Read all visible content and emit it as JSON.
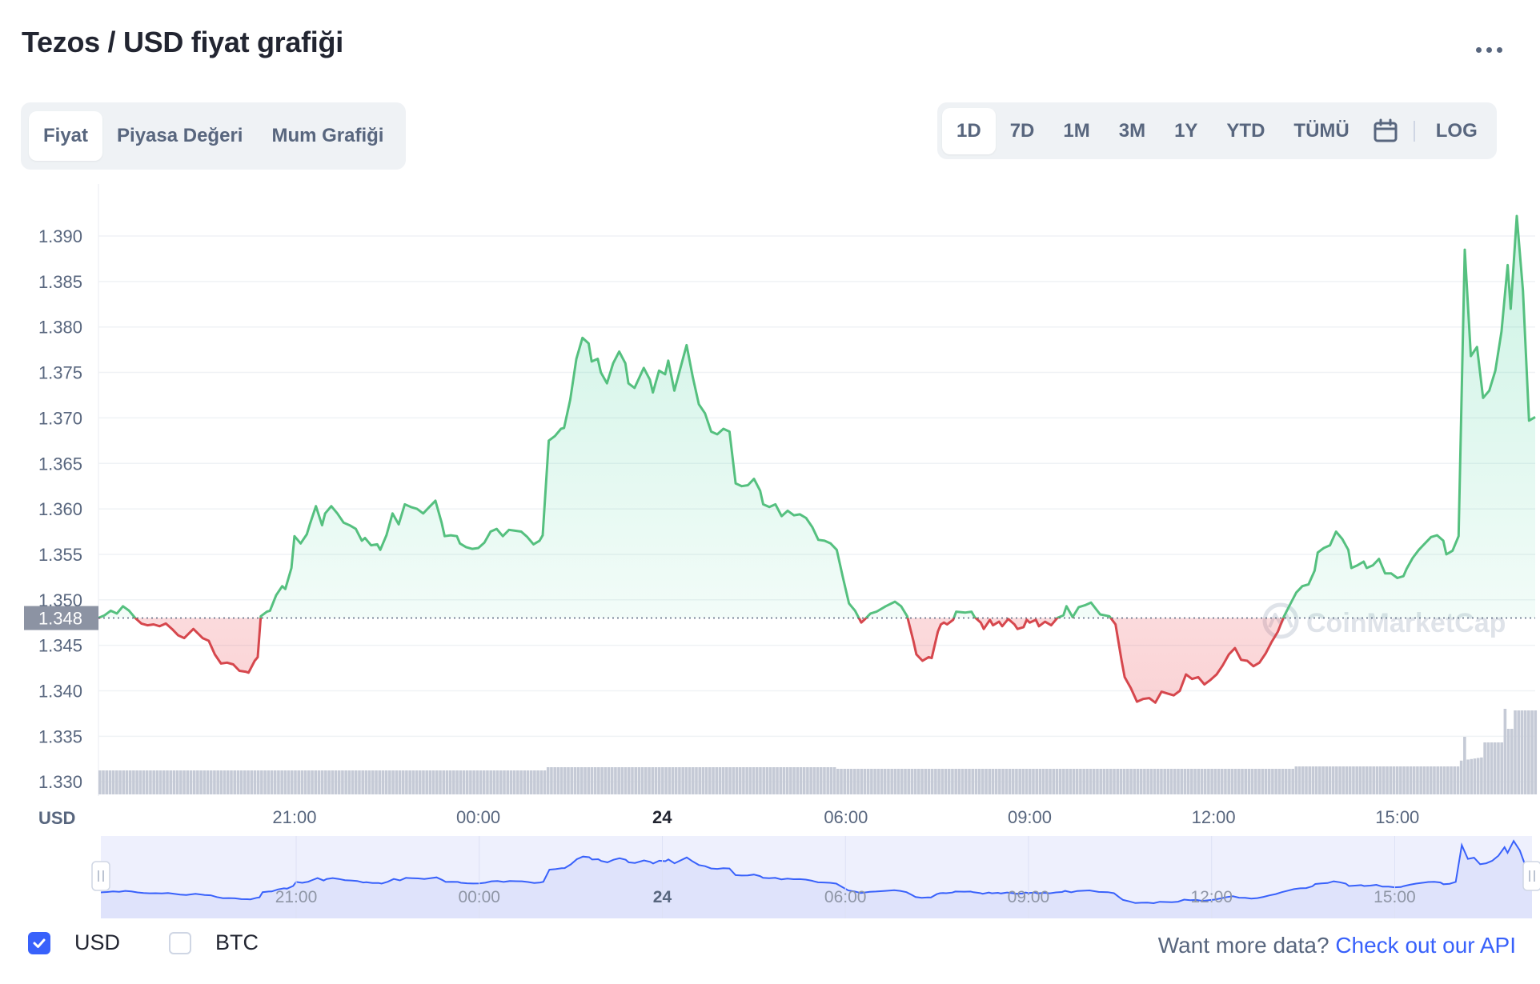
{
  "header": {
    "title": "Tezos / USD fiyat grafiği",
    "more_icon": "more-horizontal-icon"
  },
  "chart_tabs": [
    {
      "label": "Fiyat",
      "active": true
    },
    {
      "label": "Piyasa Değeri",
      "active": false
    },
    {
      "label": "Mum Grafiği",
      "active": false
    }
  ],
  "range_tabs": [
    {
      "label": "1D",
      "active": true
    },
    {
      "label": "7D",
      "active": false
    },
    {
      "label": "1M",
      "active": false
    },
    {
      "label": "3M",
      "active": false
    },
    {
      "label": "1Y",
      "active": false
    },
    {
      "label": "YTD",
      "active": false
    },
    {
      "label": "TÜMÜ",
      "active": false
    }
  ],
  "calendar_icon": "calendar-icon",
  "log_label": "LOG",
  "currency_label": "USD",
  "watermark": "CoinMarketCap",
  "colors": {
    "up": "#16c784",
    "up_line": "#55c07f",
    "down": "#ea3943",
    "down_line": "#d6474d",
    "accent": "#3861fb",
    "navigator_fill": "#dfe3fb",
    "volume": "#c5cad6"
  },
  "chart_data": {
    "type": "line",
    "title": "Tezos / USD fiyat grafiği",
    "ylabel": "USD",
    "ylim": [
      1.328,
      1.395
    ],
    "y_ticks": [
      "1.390",
      "1.385",
      "1.380",
      "1.375",
      "1.370",
      "1.365",
      "1.360",
      "1.355",
      "1.350",
      "1.345",
      "1.340",
      "1.335",
      "1.330"
    ],
    "x_ticks": [
      {
        "label": "21:00",
        "t": 3.2,
        "bold": false
      },
      {
        "label": "00:00",
        "t": 6.2,
        "bold": false
      },
      {
        "label": "24",
        "t": 9.2,
        "bold": true
      },
      {
        "label": "06:00",
        "t": 12.2,
        "bold": false
      },
      {
        "label": "09:00",
        "t": 15.2,
        "bold": false
      },
      {
        "label": "12:00",
        "t": 18.2,
        "bold": false
      },
      {
        "label": "15:00",
        "t": 21.2,
        "bold": false
      }
    ],
    "t_range": [
      0,
      23.45
    ],
    "baseline": 1.348,
    "baseline_label": "1.348",
    "series": [
      {
        "values": [
          [
            0.0,
            1.348
          ],
          [
            0.1,
            1.3483
          ],
          [
            0.2,
            1.3488
          ],
          [
            0.3,
            1.3485
          ],
          [
            0.4,
            1.3493
          ],
          [
            0.5,
            1.3488
          ],
          [
            0.6,
            1.348
          ],
          [
            0.7,
            1.3474
          ],
          [
            0.8,
            1.3472
          ],
          [
            0.9,
            1.3473
          ],
          [
            1.0,
            1.3471
          ],
          [
            1.1,
            1.3474
          ],
          [
            1.2,
            1.3468
          ],
          [
            1.3,
            1.3461
          ],
          [
            1.4,
            1.3458
          ],
          [
            1.55,
            1.3468
          ],
          [
            1.7,
            1.3458
          ],
          [
            1.8,
            1.3455
          ],
          [
            1.9,
            1.344
          ],
          [
            2.0,
            1.343
          ],
          [
            2.1,
            1.3431
          ],
          [
            2.2,
            1.3429
          ],
          [
            2.3,
            1.3422
          ],
          [
            2.4,
            1.3421
          ],
          [
            2.45,
            1.342
          ],
          [
            2.55,
            1.3433
          ],
          [
            2.6,
            1.3437
          ],
          [
            2.65,
            1.3482
          ],
          [
            2.75,
            1.3487
          ],
          [
            2.8,
            1.3488
          ],
          [
            2.9,
            1.3505
          ],
          [
            3.0,
            1.3515
          ],
          [
            3.05,
            1.3512
          ],
          [
            3.15,
            1.3535
          ],
          [
            3.2,
            1.357
          ],
          [
            3.3,
            1.3562
          ],
          [
            3.4,
            1.3572
          ],
          [
            3.45,
            1.3583
          ],
          [
            3.55,
            1.3603
          ],
          [
            3.65,
            1.3582
          ],
          [
            3.7,
            1.3595
          ],
          [
            3.8,
            1.3603
          ],
          [
            3.9,
            1.3595
          ],
          [
            4.0,
            1.3585
          ],
          [
            4.1,
            1.3582
          ],
          [
            4.2,
            1.3578
          ],
          [
            4.3,
            1.3565
          ],
          [
            4.35,
            1.3568
          ],
          [
            4.45,
            1.356
          ],
          [
            4.55,
            1.3561
          ],
          [
            4.6,
            1.3555
          ],
          [
            4.7,
            1.3571
          ],
          [
            4.8,
            1.3595
          ],
          [
            4.9,
            1.3583
          ],
          [
            5.0,
            1.3605
          ],
          [
            5.1,
            1.3602
          ],
          [
            5.2,
            1.36
          ],
          [
            5.3,
            1.3595
          ],
          [
            5.4,
            1.3602
          ],
          [
            5.5,
            1.3609
          ],
          [
            5.6,
            1.3585
          ],
          [
            5.65,
            1.357
          ],
          [
            5.75,
            1.3571
          ],
          [
            5.85,
            1.357
          ],
          [
            5.9,
            1.3562
          ],
          [
            6.0,
            1.3558
          ],
          [
            6.1,
            1.3556
          ],
          [
            6.2,
            1.3557
          ],
          [
            6.3,
            1.3563
          ],
          [
            6.4,
            1.3575
          ],
          [
            6.5,
            1.3578
          ],
          [
            6.6,
            1.357
          ],
          [
            6.7,
            1.3577
          ],
          [
            6.8,
            1.3576
          ],
          [
            6.9,
            1.3575
          ],
          [
            7.0,
            1.3569
          ],
          [
            7.1,
            1.3561
          ],
          [
            7.2,
            1.3565
          ],
          [
            7.25,
            1.3571
          ],
          [
            7.35,
            1.3675
          ],
          [
            7.45,
            1.368
          ],
          [
            7.55,
            1.3688
          ],
          [
            7.6,
            1.3689
          ],
          [
            7.7,
            1.372
          ],
          [
            7.8,
            1.3765
          ],
          [
            7.9,
            1.3788
          ],
          [
            8.0,
            1.3782
          ],
          [
            8.05,
            1.3762
          ],
          [
            8.15,
            1.3765
          ],
          [
            8.2,
            1.375
          ],
          [
            8.3,
            1.3738
          ],
          [
            8.4,
            1.376
          ],
          [
            8.5,
            1.3773
          ],
          [
            8.6,
            1.376
          ],
          [
            8.65,
            1.3738
          ],
          [
            8.75,
            1.3733
          ],
          [
            8.9,
            1.3755
          ],
          [
            9.0,
            1.3742
          ],
          [
            9.05,
            1.3728
          ],
          [
            9.15,
            1.3752
          ],
          [
            9.25,
            1.3748
          ],
          [
            9.3,
            1.3763
          ],
          [
            9.4,
            1.373
          ],
          [
            9.6,
            1.378
          ],
          [
            9.7,
            1.3745
          ],
          [
            9.8,
            1.3715
          ],
          [
            9.9,
            1.3705
          ],
          [
            10.0,
            1.3685
          ],
          [
            10.1,
            1.3682
          ],
          [
            10.2,
            1.3688
          ],
          [
            10.3,
            1.3685
          ],
          [
            10.4,
            1.3628
          ],
          [
            10.5,
            1.3625
          ],
          [
            10.6,
            1.3626
          ],
          [
            10.7,
            1.3633
          ],
          [
            10.8,
            1.362
          ],
          [
            10.85,
            1.3605
          ],
          [
            10.95,
            1.3602
          ],
          [
            11.05,
            1.3605
          ],
          [
            11.15,
            1.3592
          ],
          [
            11.25,
            1.3598
          ],
          [
            11.35,
            1.3593
          ],
          [
            11.45,
            1.3594
          ],
          [
            11.55,
            1.359
          ],
          [
            11.65,
            1.358
          ],
          [
            11.75,
            1.3566
          ],
          [
            11.85,
            1.3565
          ],
          [
            11.95,
            1.3562
          ],
          [
            12.05,
            1.3555
          ],
          [
            12.15,
            1.3525
          ],
          [
            12.25,
            1.3496
          ],
          [
            12.35,
            1.3488
          ],
          [
            12.45,
            1.3475
          ],
          [
            12.5,
            1.3478
          ],
          [
            12.6,
            1.3485
          ],
          [
            12.7,
            1.3487
          ],
          [
            12.85,
            1.3493
          ],
          [
            13.0,
            1.3498
          ],
          [
            13.1,
            1.3493
          ],
          [
            13.2,
            1.3482
          ],
          [
            13.3,
            1.3455
          ],
          [
            13.35,
            1.344
          ],
          [
            13.45,
            1.3433
          ],
          [
            13.55,
            1.3437
          ],
          [
            13.6,
            1.3436
          ],
          [
            13.7,
            1.3465
          ],
          [
            13.75,
            1.3473
          ],
          [
            13.8,
            1.3475
          ],
          [
            13.85,
            1.3473
          ],
          [
            13.95,
            1.3478
          ],
          [
            14.0,
            1.3487
          ],
          [
            14.15,
            1.3486
          ],
          [
            14.25,
            1.3487
          ],
          [
            14.3,
            1.3481
          ],
          [
            14.4,
            1.3475
          ],
          [
            14.45,
            1.3468
          ],
          [
            14.55,
            1.3478
          ],
          [
            14.6,
            1.3472
          ],
          [
            14.7,
            1.3476
          ],
          [
            14.75,
            1.3471
          ],
          [
            14.85,
            1.3479
          ],
          [
            14.95,
            1.3473
          ],
          [
            15.0,
            1.3468
          ],
          [
            15.1,
            1.347
          ],
          [
            15.15,
            1.3478
          ],
          [
            15.2,
            1.3475
          ],
          [
            15.3,
            1.3478
          ],
          [
            15.35,
            1.3471
          ],
          [
            15.45,
            1.3476
          ],
          [
            15.55,
            1.3472
          ],
          [
            15.65,
            1.348
          ],
          [
            15.75,
            1.3483
          ],
          [
            15.8,
            1.3493
          ],
          [
            15.9,
            1.3481
          ],
          [
            16.0,
            1.3492
          ],
          [
            16.1,
            1.3494
          ],
          [
            16.2,
            1.3497
          ],
          [
            16.35,
            1.3484
          ],
          [
            16.5,
            1.3482
          ],
          [
            16.6,
            1.3473
          ],
          [
            16.7,
            1.3433
          ],
          [
            16.75,
            1.3415
          ],
          [
            16.85,
            1.3403
          ],
          [
            16.95,
            1.3388
          ],
          [
            17.05,
            1.3391
          ],
          [
            17.15,
            1.3392
          ],
          [
            17.25,
            1.3387
          ],
          [
            17.35,
            1.3399
          ],
          [
            17.45,
            1.3397
          ],
          [
            17.55,
            1.3395
          ],
          [
            17.65,
            1.34
          ],
          [
            17.75,
            1.3418
          ],
          [
            17.85,
            1.3413
          ],
          [
            17.95,
            1.3415
          ],
          [
            18.05,
            1.3407
          ],
          [
            18.15,
            1.3412
          ],
          [
            18.25,
            1.3418
          ],
          [
            18.35,
            1.3428
          ],
          [
            18.45,
            1.344
          ],
          [
            18.55,
            1.3447
          ],
          [
            18.65,
            1.3434
          ],
          [
            18.75,
            1.3433
          ],
          [
            18.85,
            1.3427
          ],
          [
            18.95,
            1.3431
          ],
          [
            19.05,
            1.3441
          ],
          [
            19.15,
            1.3454
          ],
          [
            19.25,
            1.3465
          ],
          [
            19.35,
            1.3482
          ],
          [
            19.45,
            1.3495
          ],
          [
            19.55,
            1.3508
          ],
          [
            19.65,
            1.3515
          ],
          [
            19.75,
            1.3517
          ],
          [
            19.85,
            1.3532
          ],
          [
            19.9,
            1.3552
          ],
          [
            20.0,
            1.3557
          ],
          [
            20.1,
            1.356
          ],
          [
            20.2,
            1.3575
          ],
          [
            20.3,
            1.3567
          ],
          [
            20.4,
            1.3555
          ],
          [
            20.45,
            1.3535
          ],
          [
            20.55,
            1.3538
          ],
          [
            20.65,
            1.3542
          ],
          [
            20.7,
            1.3535
          ],
          [
            20.8,
            1.3538
          ],
          [
            20.9,
            1.3545
          ],
          [
            21.0,
            1.3529
          ],
          [
            21.1,
            1.3529
          ],
          [
            21.2,
            1.3524
          ],
          [
            21.3,
            1.3526
          ],
          [
            21.35,
            1.3534
          ],
          [
            21.45,
            1.3546
          ],
          [
            21.55,
            1.3555
          ],
          [
            21.65,
            1.3562
          ],
          [
            21.75,
            1.3569
          ],
          [
            21.85,
            1.3571
          ],
          [
            21.95,
            1.3565
          ],
          [
            22.0,
            1.355
          ],
          [
            22.1,
            1.3554
          ],
          [
            22.2,
            1.357
          ],
          [
            22.3,
            1.3885
          ],
          [
            22.4,
            1.3768
          ],
          [
            22.5,
            1.3778
          ],
          [
            22.6,
            1.3722
          ],
          [
            22.7,
            1.373
          ],
          [
            22.8,
            1.3752
          ],
          [
            22.9,
            1.3795
          ],
          [
            23.0,
            1.3868
          ],
          [
            23.05,
            1.382
          ],
          [
            23.15,
            1.3922
          ],
          [
            23.25,
            1.384
          ],
          [
            23.35,
            1.3697
          ],
          [
            23.45,
            1.3701
          ]
        ]
      }
    ]
  },
  "navigator": {
    "x_ticks": [
      "21:00",
      "00:00",
      "24",
      "06:00",
      "09:00",
      "12:00",
      "15:00"
    ]
  },
  "footer": {
    "usd_label": "USD",
    "btc_label": "BTC",
    "api_prefix": "Want more data?",
    "api_link": "Check out our API"
  }
}
